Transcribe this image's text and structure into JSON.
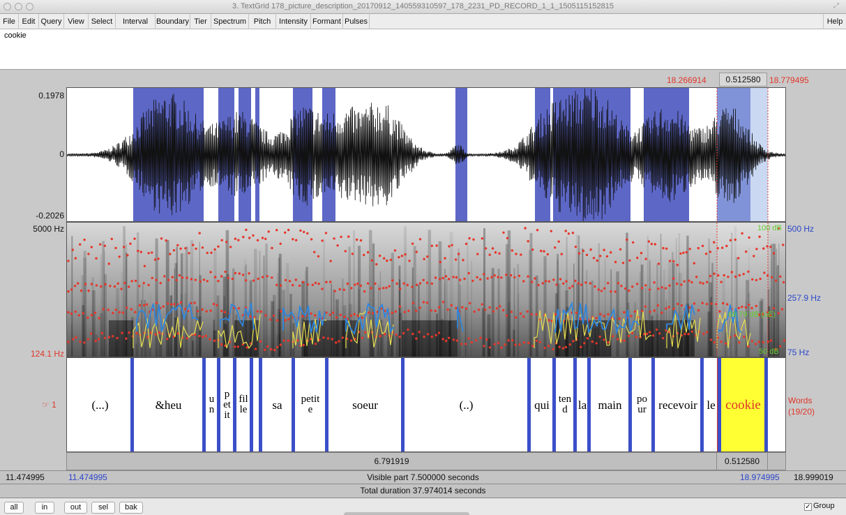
{
  "window": {
    "title": "3. TextGrid 178_picture_description_20170912_140559310597_178_2231_PD_RECORD_1_1_1505115152815"
  },
  "menu": [
    "File",
    "Edit",
    "Query",
    "View",
    "Select",
    "Interval",
    "Boundary",
    "Tier",
    "Spectrum",
    "Pitch",
    "Intensity",
    "Formant",
    "Pulses",
    "Help"
  ],
  "text_field": {
    "value": "cookie"
  },
  "selection": {
    "start": "18.266914",
    "duration": "0.512580",
    "end": "18.779495"
  },
  "waveform": {
    "max_label": "0.1978",
    "zero_label": "0",
    "min_label": "-0.2026"
  },
  "spectrogram": {
    "top_label": "5000 Hz",
    "bottom_label": "124.1 Hz",
    "right_labels": {
      "pitch_top": "500 Hz",
      "intensity_top": "100 dB",
      "pitch_mid": "257.9 Hz",
      "intensity_mid": "69.79 dB (uE)",
      "intensity_bottom": "50 dB",
      "pitch_bottom": "75 Hz"
    }
  },
  "tier": {
    "number": "1",
    "pointer_icon": "hand-pointer-icon",
    "name": "Words",
    "count": "(19/20)",
    "intervals": [
      {
        "text": "(...)"
      },
      {
        "text": "&heu"
      },
      {
        "lines": [
          "u",
          "n"
        ]
      },
      {
        "lines": [
          "p",
          "et",
          "it"
        ]
      },
      {
        "lines": [
          "fil",
          "le"
        ]
      },
      {
        "text": ""
      },
      {
        "text": "sa"
      },
      {
        "lines": [
          "petit",
          "e"
        ]
      },
      {
        "text": "soeur"
      },
      {
        "text": "(..)"
      },
      {
        "text": "qui"
      },
      {
        "lines": [
          "ten",
          "d"
        ]
      },
      {
        "text": "la"
      },
      {
        "text": "main"
      },
      {
        "lines": [
          "po",
          "ur"
        ]
      },
      {
        "text": "recevoir"
      },
      {
        "text": "le"
      },
      {
        "text": "cookie"
      }
    ]
  },
  "durations": {
    "left_part": "6.791919",
    "selection": "0.512580",
    "window_start": "11.474995",
    "visible_start": "11.474995",
    "visible_part": "Visible part 7.500000 seconds",
    "visible_end": "18.974995",
    "window_end": "18.999019",
    "total": "Total duration 37.974014 seconds"
  },
  "buttons": [
    "all",
    "in",
    "out",
    "sel",
    "bak"
  ],
  "group": {
    "label": "Group",
    "checked": true
  },
  "colors": {
    "cursor_red": "#e0362a",
    "selection_blue": "#2b46c9",
    "boundary_blue": "#3a4fc9",
    "selected_interval": "#ffff33",
    "formant_dot": "#e6372b",
    "pitch_line": "#2e86de",
    "intensity_line": "#e8e050"
  }
}
